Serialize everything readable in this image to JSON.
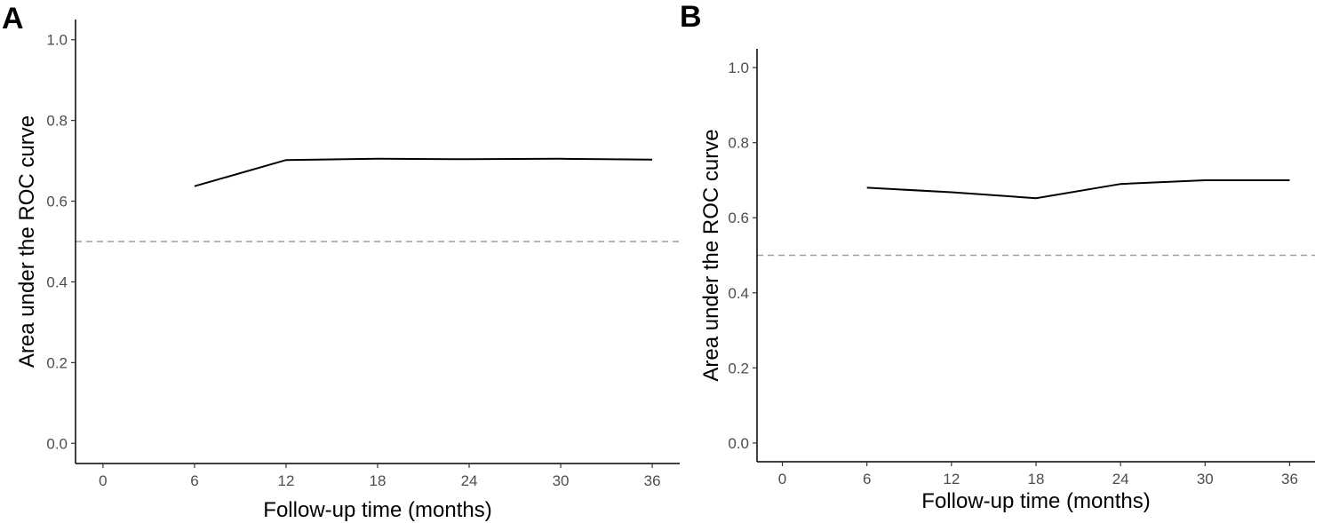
{
  "chart_data": [
    {
      "type": "line",
      "panel_label": "A",
      "title": "",
      "xlabel": "Follow-up time (months)",
      "ylabel": "Area under the ROC curve",
      "x_ticks": [
        0,
        6,
        12,
        18,
        24,
        30,
        36
      ],
      "y_ticks": [
        "0.0",
        "0.2",
        "0.4",
        "0.6",
        "0.8",
        "1.0"
      ],
      "xlim": [
        -1.8,
        37.8
      ],
      "ylim": [
        -0.05,
        1.05
      ],
      "grid": false,
      "reference_line": {
        "y": 0.5,
        "style": "dashed",
        "color": "#9e9e9e"
      },
      "series": [
        {
          "x": [
            6,
            12,
            18,
            24,
            30,
            36
          ],
          "y": [
            0.637,
            0.702,
            0.705,
            0.704,
            0.705,
            0.703
          ],
          "color": "#000000"
        }
      ]
    },
    {
      "type": "line",
      "panel_label": "B",
      "title": "",
      "xlabel": "Follow-up time (months)",
      "ylabel": "Area under the ROC curve",
      "x_ticks": [
        0,
        6,
        12,
        18,
        24,
        30,
        36
      ],
      "y_ticks": [
        "0.0",
        "0.2",
        "0.4",
        "0.6",
        "0.8",
        "1.0"
      ],
      "xlim": [
        -1.8,
        37.8
      ],
      "ylim": [
        -0.05,
        1.05
      ],
      "grid": false,
      "reference_line": {
        "y": 0.5,
        "style": "dashed",
        "color": "#9e9e9e"
      },
      "series": [
        {
          "x": [
            6,
            12,
            18,
            24,
            30,
            36
          ],
          "y": [
            0.68,
            0.668,
            0.652,
            0.69,
            0.7,
            0.7
          ],
          "color": "#000000"
        }
      ]
    }
  ]
}
